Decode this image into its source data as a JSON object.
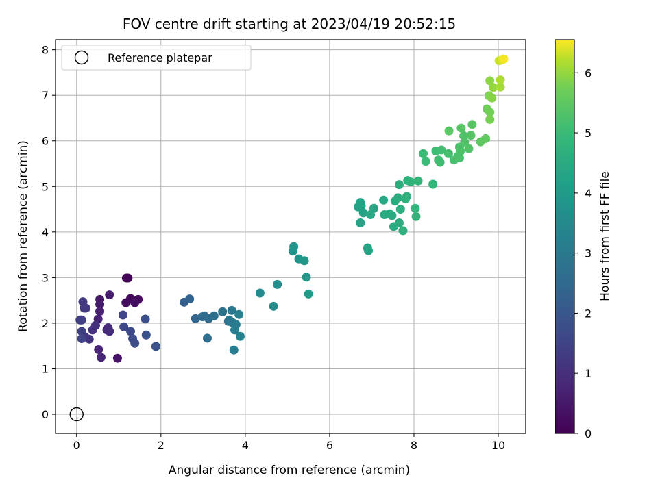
{
  "chart_data": {
    "type": "scatter",
    "title": "FOV centre drift starting at 2023/04/19 20:52:15",
    "xlabel": "Angular distance from reference (arcmin)",
    "ylabel": "Rotation from reference (arcmin)",
    "xlim": [
      -0.5,
      10.65
    ],
    "ylim": [
      -0.42,
      8.22
    ],
    "xticks": [
      0,
      2,
      4,
      6,
      8,
      10
    ],
    "yticks": [
      0,
      1,
      2,
      3,
      4,
      5,
      6,
      7,
      8
    ],
    "grid": true,
    "legend": {
      "position": "top-left",
      "entries": [
        "Reference platepar"
      ]
    },
    "reference_point": {
      "x": 0,
      "y": 0,
      "marker": "open-circle"
    },
    "colorbar": {
      "label": "Hours from first FF file",
      "range": [
        0,
        6.55
      ],
      "ticks": [
        0,
        1,
        2,
        3,
        4,
        5,
        6
      ],
      "colormap": "viridis"
    },
    "series": [
      {
        "points": [
          {
            "x": 1.18,
            "y": 2.99,
            "t": 0.05
          },
          {
            "x": 1.22,
            "y": 2.99,
            "t": 0.1
          },
          {
            "x": 1.28,
            "y": 2.54,
            "t": 0.15
          },
          {
            "x": 1.46,
            "y": 2.52,
            "t": 0.2
          },
          {
            "x": 1.17,
            "y": 2.45,
            "t": 0.25
          },
          {
            "x": 1.38,
            "y": 2.45,
            "t": 0.3
          },
          {
            "x": 0.97,
            "y": 1.23,
            "t": 0.4
          },
          {
            "x": 0.55,
            "y": 2.52,
            "t": 0.5
          },
          {
            "x": 0.55,
            "y": 2.41,
            "t": 0.55
          },
          {
            "x": 0.78,
            "y": 2.62,
            "t": 0.6
          },
          {
            "x": 0.55,
            "y": 2.26,
            "t": 0.65
          },
          {
            "x": 0.51,
            "y": 2.09,
            "t": 0.7
          },
          {
            "x": 0.52,
            "y": 1.42,
            "t": 0.75
          },
          {
            "x": 0.58,
            "y": 1.25,
            "t": 0.8
          },
          {
            "x": 0.72,
            "y": 1.85,
            "t": 0.85
          },
          {
            "x": 0.75,
            "y": 1.9,
            "t": 0.9
          },
          {
            "x": 0.78,
            "y": 1.82,
            "t": 0.95
          },
          {
            "x": 0.45,
            "y": 1.95,
            "t": 1.0
          },
          {
            "x": 0.38,
            "y": 1.85,
            "t": 1.05
          },
          {
            "x": 0.3,
            "y": 1.65,
            "t": 1.1
          },
          {
            "x": 0.2,
            "y": 1.7,
            "t": 1.15
          },
          {
            "x": 0.18,
            "y": 2.33,
            "t": 1.2
          },
          {
            "x": 0.22,
            "y": 2.33,
            "t": 1.25
          },
          {
            "x": 0.15,
            "y": 2.47,
            "t": 1.3
          },
          {
            "x": 0.12,
            "y": 2.07,
            "t": 1.35
          },
          {
            "x": 0.08,
            "y": 2.07,
            "t": 1.4
          },
          {
            "x": 0.12,
            "y": 1.82,
            "t": 1.45
          },
          {
            "x": 0.12,
            "y": 1.66,
            "t": 1.5
          },
          {
            "x": 1.1,
            "y": 2.18,
            "t": 1.55
          },
          {
            "x": 1.12,
            "y": 1.92,
            "t": 1.6
          },
          {
            "x": 1.28,
            "y": 1.82,
            "t": 1.65
          },
          {
            "x": 1.33,
            "y": 1.66,
            "t": 1.7
          },
          {
            "x": 1.38,
            "y": 1.56,
            "t": 1.75
          },
          {
            "x": 1.63,
            "y": 2.09,
            "t": 1.8
          },
          {
            "x": 1.65,
            "y": 1.74,
            "t": 1.85
          },
          {
            "x": 1.88,
            "y": 1.49,
            "t": 1.9
          },
          {
            "x": 2.55,
            "y": 2.46,
            "t": 2.2
          },
          {
            "x": 2.68,
            "y": 2.53,
            "t": 2.3
          },
          {
            "x": 2.82,
            "y": 2.1,
            "t": 2.4
          },
          {
            "x": 2.98,
            "y": 2.14,
            "t": 2.5
          },
          {
            "x": 3.03,
            "y": 2.16,
            "t": 2.55
          },
          {
            "x": 3.13,
            "y": 2.1,
            "t": 2.6
          },
          {
            "x": 3.1,
            "y": 1.67,
            "t": 2.65
          },
          {
            "x": 3.26,
            "y": 2.16,
            "t": 2.7
          },
          {
            "x": 3.46,
            "y": 2.25,
            "t": 2.8
          },
          {
            "x": 3.6,
            "y": 2.04,
            "t": 2.85
          },
          {
            "x": 3.62,
            "y": 2.07,
            "t": 2.9
          },
          {
            "x": 3.68,
            "y": 2.28,
            "t": 2.95
          },
          {
            "x": 3.7,
            "y": 2.01,
            "t": 3.0
          },
          {
            "x": 3.75,
            "y": 1.85,
            "t": 3.05
          },
          {
            "x": 3.78,
            "y": 1.97,
            "t": 3.1
          },
          {
            "x": 3.73,
            "y": 1.41,
            "t": 3.15
          },
          {
            "x": 3.85,
            "y": 2.19,
            "t": 3.2
          },
          {
            "x": 3.88,
            "y": 1.71,
            "t": 3.25
          },
          {
            "x": 4.35,
            "y": 2.66,
            "t": 3.5
          },
          {
            "x": 4.67,
            "y": 2.37,
            "t": 3.6
          },
          {
            "x": 4.76,
            "y": 2.85,
            "t": 3.65
          },
          {
            "x": 5.15,
            "y": 3.68,
            "t": 3.75
          },
          {
            "x": 5.13,
            "y": 3.58,
            "t": 3.8
          },
          {
            "x": 5.27,
            "y": 3.41,
            "t": 3.85
          },
          {
            "x": 5.4,
            "y": 3.37,
            "t": 3.9
          },
          {
            "x": 5.45,
            "y": 3.01,
            "t": 3.95
          },
          {
            "x": 5.5,
            "y": 2.64,
            "t": 4.0
          },
          {
            "x": 6.68,
            "y": 4.55,
            "t": 4.2
          },
          {
            "x": 6.73,
            "y": 4.65,
            "t": 4.22
          },
          {
            "x": 6.75,
            "y": 4.57,
            "t": 4.25
          },
          {
            "x": 6.73,
            "y": 4.2,
            "t": 4.28
          },
          {
            "x": 6.8,
            "y": 4.42,
            "t": 4.3
          },
          {
            "x": 6.9,
            "y": 3.65,
            "t": 4.32
          },
          {
            "x": 6.92,
            "y": 3.59,
            "t": 4.35
          },
          {
            "x": 6.97,
            "y": 4.38,
            "t": 4.38
          },
          {
            "x": 7.05,
            "y": 4.52,
            "t": 4.4
          },
          {
            "x": 7.28,
            "y": 4.7,
            "t": 4.42
          },
          {
            "x": 7.3,
            "y": 4.38,
            "t": 4.45
          },
          {
            "x": 7.42,
            "y": 4.4,
            "t": 4.48
          },
          {
            "x": 7.48,
            "y": 4.36,
            "t": 4.5
          },
          {
            "x": 7.52,
            "y": 4.12,
            "t": 4.52
          },
          {
            "x": 7.55,
            "y": 4.68,
            "t": 4.55
          },
          {
            "x": 7.62,
            "y": 4.75,
            "t": 4.58
          },
          {
            "x": 7.65,
            "y": 4.2,
            "t": 4.6
          },
          {
            "x": 7.68,
            "y": 4.5,
            "t": 4.62
          },
          {
            "x": 7.65,
            "y": 5.04,
            "t": 4.65
          },
          {
            "x": 7.74,
            "y": 4.03,
            "t": 4.68
          },
          {
            "x": 7.8,
            "y": 4.73,
            "t": 4.7
          },
          {
            "x": 7.83,
            "y": 4.78,
            "t": 4.72
          },
          {
            "x": 7.85,
            "y": 5.13,
            "t": 4.75
          },
          {
            "x": 7.92,
            "y": 5.1,
            "t": 4.78
          },
          {
            "x": 8.03,
            "y": 4.52,
            "t": 4.8
          },
          {
            "x": 8.05,
            "y": 4.34,
            "t": 4.82
          },
          {
            "x": 8.1,
            "y": 5.12,
            "t": 4.85
          },
          {
            "x": 8.45,
            "y": 5.05,
            "t": 4.88
          },
          {
            "x": 8.22,
            "y": 5.72,
            "t": 5.0
          },
          {
            "x": 8.28,
            "y": 5.55,
            "t": 5.02
          },
          {
            "x": 8.52,
            "y": 5.78,
            "t": 5.05
          },
          {
            "x": 8.58,
            "y": 5.58,
            "t": 5.08
          },
          {
            "x": 8.62,
            "y": 5.53,
            "t": 5.1
          },
          {
            "x": 8.65,
            "y": 5.8,
            "t": 5.12
          },
          {
            "x": 8.82,
            "y": 5.72,
            "t": 5.15
          },
          {
            "x": 8.95,
            "y": 5.58,
            "t": 5.18
          },
          {
            "x": 9.05,
            "y": 5.67,
            "t": 5.2
          },
          {
            "x": 9.08,
            "y": 5.63,
            "t": 5.22
          },
          {
            "x": 9.08,
            "y": 5.86,
            "t": 5.25
          },
          {
            "x": 9.1,
            "y": 5.77,
            "t": 5.28
          },
          {
            "x": 9.18,
            "y": 6.11,
            "t": 5.3
          },
          {
            "x": 9.2,
            "y": 5.97,
            "t": 5.32
          },
          {
            "x": 9.3,
            "y": 5.83,
            "t": 5.35
          },
          {
            "x": 9.35,
            "y": 6.12,
            "t": 5.38
          },
          {
            "x": 9.12,
            "y": 6.28,
            "t": 5.4
          },
          {
            "x": 9.38,
            "y": 6.36,
            "t": 5.42
          },
          {
            "x": 8.83,
            "y": 6.22,
            "t": 5.45
          },
          {
            "x": 9.58,
            "y": 5.98,
            "t": 5.5
          },
          {
            "x": 9.7,
            "y": 6.05,
            "t": 5.55
          },
          {
            "x": 9.73,
            "y": 6.7,
            "t": 5.7
          },
          {
            "x": 9.8,
            "y": 6.63,
            "t": 5.75
          },
          {
            "x": 9.8,
            "y": 6.47,
            "t": 5.8
          },
          {
            "x": 9.78,
            "y": 6.99,
            "t": 5.85
          },
          {
            "x": 9.85,
            "y": 6.94,
            "t": 5.9
          },
          {
            "x": 9.8,
            "y": 7.32,
            "t": 5.95
          },
          {
            "x": 9.88,
            "y": 7.17,
            "t": 6.0
          },
          {
            "x": 10.05,
            "y": 7.18,
            "t": 6.1
          },
          {
            "x": 10.05,
            "y": 7.34,
            "t": 6.15
          },
          {
            "x": 10.02,
            "y": 7.76,
            "t": 6.3
          },
          {
            "x": 10.1,
            "y": 7.78,
            "t": 6.4
          },
          {
            "x": 10.13,
            "y": 7.8,
            "t": 6.5
          }
        ]
      }
    ]
  }
}
